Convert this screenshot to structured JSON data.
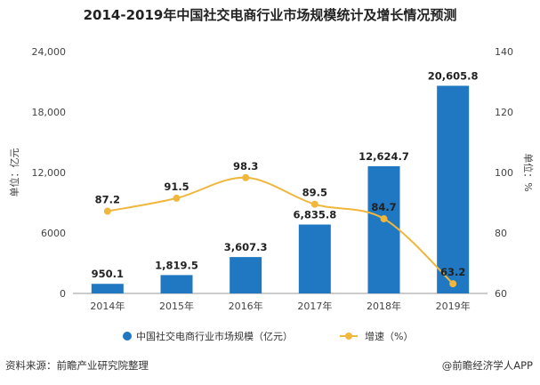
{
  "title": "2014-2019年中国社交电商行业市场规模统计及增长情况预测",
  "footer": {
    "source": "资料来源：前瞻产业研究院整理",
    "brand": "@前瞻经济学人APP"
  },
  "chart_data": {
    "type": "bar+line",
    "categories": [
      "2014年",
      "2015年",
      "2016年",
      "2017年",
      "2018年",
      "2019年"
    ],
    "series": [
      {
        "name": "中国社交电商行业市场规模（亿元）",
        "type": "bar",
        "axis": "left",
        "values": [
          950.1,
          1819.5,
          3607.3,
          6835.8,
          12624.7,
          20605.8
        ],
        "labels": [
          "950.1",
          "1,819.5",
          "3,607.3",
          "6,835.8",
          "12,624.7",
          "20,605.8"
        ],
        "color": "#1f78c1"
      },
      {
        "name": "增速（%）",
        "type": "line",
        "axis": "right",
        "values": [
          87.2,
          91.5,
          98.3,
          89.5,
          84.7,
          63.2
        ],
        "labels": [
          "87.2",
          "91.5",
          "98.3",
          "89.5",
          "84.7",
          "63.2"
        ],
        "color": "#f0b73c"
      }
    ],
    "left_axis": {
      "label": "单位：亿元",
      "ylim": [
        0,
        24000
      ],
      "ticks": [
        "0",
        "6000",
        "12,000",
        "18,000",
        "24,000"
      ]
    },
    "right_axis": {
      "label": "单位：%",
      "ylim": [
        60,
        140
      ],
      "ticks": [
        "60",
        "80",
        "100",
        "120",
        "140"
      ]
    },
    "grid": false,
    "legend_position": "bottom"
  }
}
